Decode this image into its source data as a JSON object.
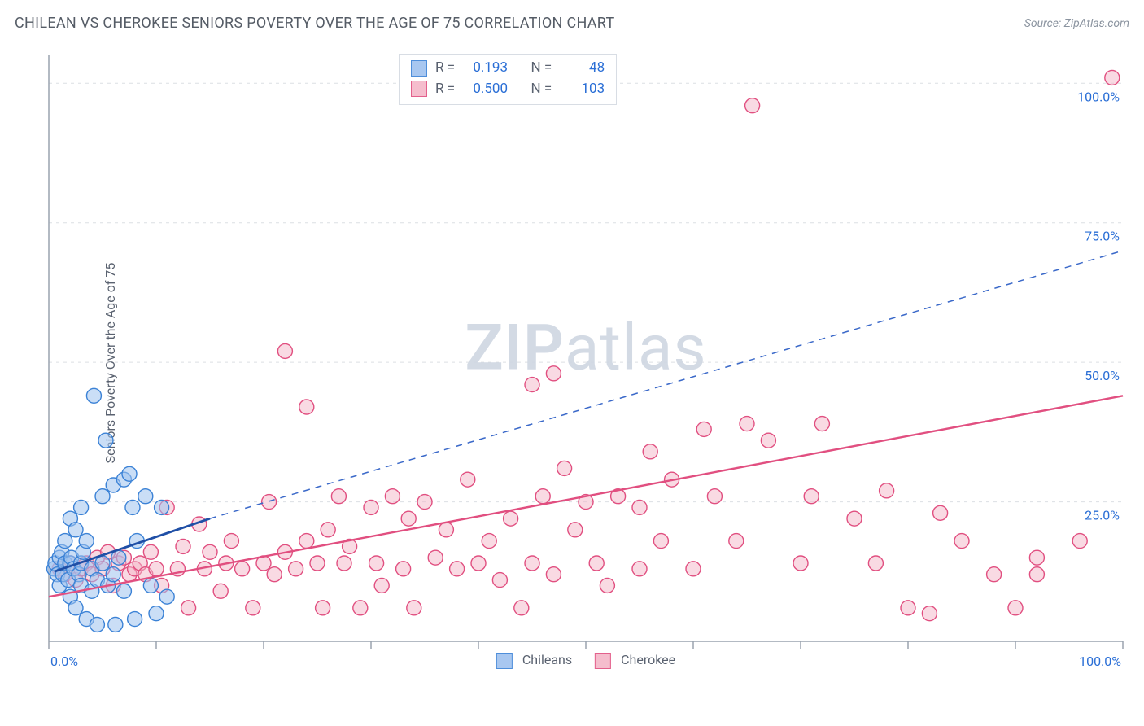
{
  "title": "CHILEAN VS CHEROKEE SENIORS POVERTY OVER THE AGE OF 75 CORRELATION CHART",
  "source_label": "Source: ZipAtlas.com",
  "ylabel": "Seniors Poverty Over the Age of 75",
  "watermark_a": "ZIP",
  "watermark_b": "atlas",
  "chart": {
    "type": "scatter",
    "xlim": [
      0,
      100
    ],
    "ylim": [
      0,
      105
    ],
    "x_ticks": [
      0,
      10,
      20,
      30,
      40,
      50,
      60,
      70,
      80,
      90,
      100
    ],
    "x_tick_labels": {
      "0": "0.0%",
      "100": "100.0%"
    },
    "y_gridlines": [
      25,
      50,
      75,
      100
    ],
    "y_tick_labels": {
      "25": "25.0%",
      "50": "50.0%",
      "75": "75.0%",
      "100": "100.0%"
    },
    "background_color": "#ffffff",
    "grid_color": "#dcdfe4",
    "grid_dash": "4,5",
    "axis_color": "#9aa3af",
    "axis_label_color": "#2b6fd6",
    "marker_radius": 9,
    "marker_stroke_width": 1.4,
    "series": [
      {
        "name": "Chileans",
        "name_key": "chileans_label",
        "fill": "#9fc2ef",
        "fill_opacity": 0.55,
        "stroke": "#3b82d6",
        "R": "0.193",
        "N": "48",
        "trend_solid": {
          "x1": 0.5,
          "y1": 12.5,
          "x2": 15,
          "y2": 22,
          "color": "#1f4fa6",
          "width": 2.8
        },
        "trend_dashed": {
          "x1": 15,
          "y1": 22,
          "x2": 100,
          "y2": 70,
          "color": "#3b69c9",
          "width": 1.5,
          "dash": "8,7"
        },
        "points": [
          [
            0.5,
            13
          ],
          [
            0.6,
            14
          ],
          [
            0.8,
            12
          ],
          [
            1,
            15
          ],
          [
            1,
            10
          ],
          [
            1.2,
            16
          ],
          [
            1.3,
            12
          ],
          [
            1.5,
            18
          ],
          [
            1.5,
            14
          ],
          [
            1.8,
            11
          ],
          [
            2,
            22
          ],
          [
            2,
            14
          ],
          [
            2,
            8
          ],
          [
            2.1,
            15
          ],
          [
            2.3,
            13
          ],
          [
            2.5,
            6
          ],
          [
            2.5,
            20
          ],
          [
            2.8,
            12
          ],
          [
            3,
            24
          ],
          [
            3,
            14
          ],
          [
            3,
            10
          ],
          [
            3.2,
            16
          ],
          [
            3.5,
            4
          ],
          [
            3.5,
            18
          ],
          [
            4,
            13
          ],
          [
            4,
            9
          ],
          [
            4.2,
            44
          ],
          [
            4.5,
            11
          ],
          [
            4.5,
            3
          ],
          [
            5,
            26
          ],
          [
            5,
            14
          ],
          [
            5.3,
            36
          ],
          [
            5.5,
            10
          ],
          [
            6,
            28
          ],
          [
            6,
            12
          ],
          [
            6.2,
            3
          ],
          [
            6.5,
            15
          ],
          [
            7,
            29
          ],
          [
            7,
            9
          ],
          [
            7.5,
            30
          ],
          [
            7.8,
            24
          ],
          [
            8,
            4
          ],
          [
            8.2,
            18
          ],
          [
            9,
            26
          ],
          [
            9.5,
            10
          ],
          [
            10,
            5
          ],
          [
            10.5,
            24
          ],
          [
            11,
            8
          ]
        ]
      },
      {
        "name": "Cherokee",
        "name_key": "cherokee_label",
        "fill": "#f4b6c8",
        "fill_opacity": 0.5,
        "stroke": "#e14f80",
        "R": "0.500",
        "N": "103",
        "trend_solid": {
          "x1": 0,
          "y1": 8,
          "x2": 100,
          "y2": 44,
          "color": "#e14f80",
          "width": 2.4
        },
        "points": [
          [
            1,
            13
          ],
          [
            1.5,
            12
          ],
          [
            2,
            14
          ],
          [
            2.5,
            11
          ],
          [
            3,
            13
          ],
          [
            3.5,
            14
          ],
          [
            4,
            12
          ],
          [
            4.5,
            15
          ],
          [
            5,
            13
          ],
          [
            5.5,
            16
          ],
          [
            6,
            10
          ],
          [
            6.5,
            14
          ],
          [
            7,
            15
          ],
          [
            7.5,
            12
          ],
          [
            8,
            13
          ],
          [
            8.5,
            14
          ],
          [
            9,
            12
          ],
          [
            9.5,
            16
          ],
          [
            10,
            13
          ],
          [
            10.5,
            10
          ],
          [
            11,
            24
          ],
          [
            12,
            13
          ],
          [
            12.5,
            17
          ],
          [
            13,
            6
          ],
          [
            14,
            21
          ],
          [
            14.5,
            13
          ],
          [
            15,
            16
          ],
          [
            16,
            9
          ],
          [
            16.5,
            14
          ],
          [
            17,
            18
          ],
          [
            18,
            13
          ],
          [
            19,
            6
          ],
          [
            20,
            14
          ],
          [
            20.5,
            25
          ],
          [
            21,
            12
          ],
          [
            22,
            52
          ],
          [
            22,
            16
          ],
          [
            23,
            13
          ],
          [
            24,
            42
          ],
          [
            24,
            18
          ],
          [
            25,
            14
          ],
          [
            25.5,
            6
          ],
          [
            26,
            20
          ],
          [
            27,
            26
          ],
          [
            27.5,
            14
          ],
          [
            28,
            17
          ],
          [
            29,
            6
          ],
          [
            30,
            24
          ],
          [
            30.5,
            14
          ],
          [
            31,
            10
          ],
          [
            32,
            26
          ],
          [
            33,
            13
          ],
          [
            33.5,
            22
          ],
          [
            34,
            6
          ],
          [
            35,
            25
          ],
          [
            36,
            15
          ],
          [
            37,
            20
          ],
          [
            38,
            13
          ],
          [
            39,
            29
          ],
          [
            40,
            14
          ],
          [
            41,
            18
          ],
          [
            42,
            11
          ],
          [
            43,
            22
          ],
          [
            44,
            6
          ],
          [
            45,
            46
          ],
          [
            45,
            14
          ],
          [
            46,
            26
          ],
          [
            47,
            48
          ],
          [
            47,
            12
          ],
          [
            48,
            31
          ],
          [
            49,
            20
          ],
          [
            50,
            25
          ],
          [
            51,
            14
          ],
          [
            52,
            10
          ],
          [
            53,
            26
          ],
          [
            55,
            24
          ],
          [
            55,
            13
          ],
          [
            56,
            34
          ],
          [
            57,
            18
          ],
          [
            58,
            29
          ],
          [
            60,
            13
          ],
          [
            61,
            38
          ],
          [
            62,
            26
          ],
          [
            64,
            18
          ],
          [
            65,
            39
          ],
          [
            65.5,
            96
          ],
          [
            67,
            36
          ],
          [
            70,
            14
          ],
          [
            71,
            26
          ],
          [
            72,
            39
          ],
          [
            75,
            22
          ],
          [
            77,
            14
          ],
          [
            78,
            27
          ],
          [
            80,
            6
          ],
          [
            82,
            5
          ],
          [
            83,
            23
          ],
          [
            85,
            18
          ],
          [
            88,
            12
          ],
          [
            90,
            6
          ],
          [
            92,
            15
          ],
          [
            92,
            12
          ],
          [
            96,
            18
          ],
          [
            99,
            101
          ]
        ]
      }
    ]
  },
  "legend_labels": {
    "R": "R =",
    "N": "N =",
    "chileans_label": "Chileans",
    "cherokee_label": "Cherokee"
  }
}
